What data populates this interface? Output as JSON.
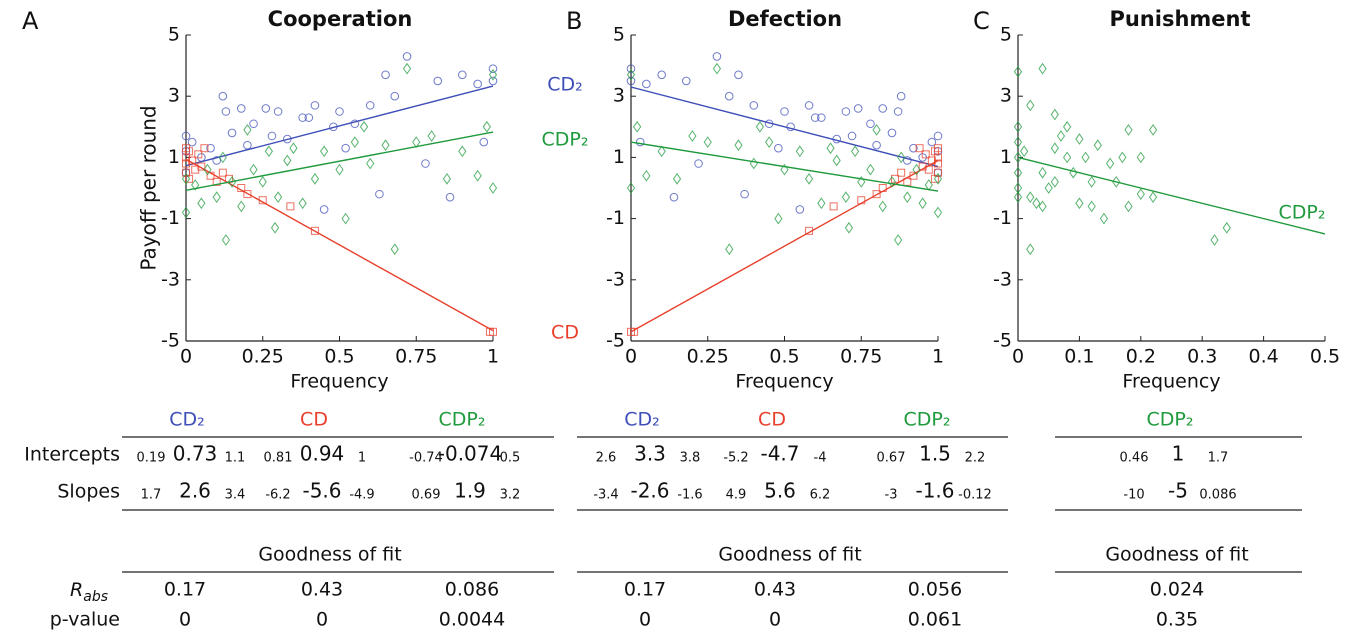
{
  "chart_data": [
    {
      "type": "scatter",
      "label": "A",
      "title": "Cooperation",
      "xlabel": "Frequency",
      "ylabel": "Payoff per round",
      "xlim": [
        0,
        1
      ],
      "ylim": [
        -5,
        5
      ],
      "xticks": [
        0,
        0.25,
        0.5,
        0.75,
        1
      ],
      "yticks": [
        -5,
        -3,
        -1,
        1,
        3,
        5
      ],
      "series": [
        {
          "name": "CD₂",
          "color": "#3f4fb8",
          "marker": "circle",
          "x": [
            0,
            0,
            0,
            0.02,
            0.05,
            0.08,
            0.1,
            0.12,
            0.13,
            0.15,
            0.18,
            0.2,
            0.22,
            0.26,
            0.28,
            0.3,
            0.33,
            0.38,
            0.4,
            0.42,
            0.45,
            0.48,
            0.5,
            0.52,
            0.55,
            0.6,
            0.63,
            0.65,
            0.68,
            0.72,
            0.78,
            0.82,
            0.86,
            0.9,
            0.95,
            0.97,
            1,
            1
          ],
          "y": [
            1.7,
            1.2,
            0.5,
            1.5,
            1.0,
            1.3,
            0.9,
            3.0,
            2.5,
            1.8,
            2.6,
            1.4,
            2.1,
            2.6,
            1.7,
            2.5,
            1.6,
            2.3,
            2.3,
            2.7,
            -0.7,
            2.0,
            2.5,
            1.3,
            2.1,
            2.7,
            -0.2,
            3.7,
            3.0,
            4.3,
            0.8,
            3.5,
            -0.3,
            3.7,
            3.4,
            1.5,
            3.9,
            3.5
          ]
        },
        {
          "name": "CD",
          "color": "#e8402c",
          "marker": "square",
          "x": [
            0,
            0,
            0,
            0,
            0.01,
            0.01,
            0.02,
            0.03,
            0.04,
            0.05,
            0.06,
            0.08,
            0.1,
            0.12,
            0.14,
            0.18,
            0.2,
            0.25,
            0.34,
            0.42,
            0.99,
            1
          ],
          "y": [
            0.5,
            0.8,
            1.0,
            1.3,
            0.3,
            1.2,
            0.9,
            0.6,
            1.1,
            0.7,
            1.3,
            0.4,
            0.2,
            0.5,
            0.3,
            0,
            -0.2,
            -0.4,
            -0.6,
            -1.4,
            -4.7,
            -4.7
          ]
        },
        {
          "name": "CDP₂",
          "color": "#1f9a3c",
          "marker": "diamond",
          "x": [
            0,
            0,
            0.03,
            0.05,
            0.07,
            0.1,
            0.12,
            0.13,
            0.15,
            0.18,
            0.2,
            0.22,
            0.25,
            0.27,
            0.29,
            0.3,
            0.33,
            0.35,
            0.38,
            0.42,
            0.45,
            0.5,
            0.52,
            0.55,
            0.58,
            0.6,
            0.65,
            0.68,
            0.72,
            0.75,
            0.8,
            0.85,
            0.9,
            0.95,
            0.98,
            1,
            1
          ],
          "y": [
            -0.8,
            0.3,
            0.1,
            -0.5,
            0.6,
            -0.3,
            1.0,
            -1.7,
            0.2,
            -0.6,
            1.9,
            0.6,
            0.2,
            1.2,
            -1.3,
            -0.3,
            0.9,
            1.3,
            -0.5,
            0.3,
            1.2,
            0.6,
            -1.0,
            1.5,
            2.0,
            0.8,
            1.4,
            -2.0,
            3.9,
            1.5,
            1.7,
            0.3,
            1.2,
            0.4,
            2.0,
            0,
            3.7
          ]
        }
      ]
    },
    {
      "type": "scatter",
      "label": "B",
      "title": "Defection",
      "xlabel": "Frequency",
      "xlim": [
        0,
        1
      ],
      "ylim": [
        -5,
        5
      ],
      "xticks": [
        0,
        0.25,
        0.5,
        0.75,
        1
      ],
      "yticks": [
        -5,
        -3,
        -1,
        1,
        3,
        5
      ],
      "series": [
        {
          "name": "CD₂",
          "color": "#3f4fb8",
          "marker": "circle",
          "x": [
            1,
            1,
            1,
            0.98,
            0.95,
            0.92,
            0.9,
            0.88,
            0.87,
            0.85,
            0.82,
            0.8,
            0.78,
            0.74,
            0.72,
            0.7,
            0.67,
            0.62,
            0.6,
            0.58,
            0.55,
            0.52,
            0.5,
            0.48,
            0.45,
            0.4,
            0.37,
            0.35,
            0.32,
            0.28,
            0.22,
            0.18,
            0.14,
            0.1,
            0.05,
            0.03,
            0,
            0
          ],
          "y": [
            1.7,
            1.2,
            0.5,
            1.5,
            1.0,
            1.3,
            0.9,
            3.0,
            2.5,
            1.8,
            2.6,
            1.4,
            2.1,
            2.6,
            1.7,
            2.5,
            1.6,
            2.3,
            2.3,
            2.7,
            -0.7,
            2.0,
            2.5,
            1.3,
            2.1,
            2.7,
            -0.2,
            3.7,
            3.0,
            4.3,
            0.8,
            3.5,
            -0.3,
            3.7,
            3.4,
            1.5,
            3.9,
            3.5
          ]
        },
        {
          "name": "CD",
          "color": "#e8402c",
          "marker": "square",
          "x": [
            1,
            1,
            1,
            1,
            0.99,
            0.99,
            0.98,
            0.97,
            0.96,
            0.95,
            0.94,
            0.92,
            0.9,
            0.88,
            0.86,
            0.82,
            0.8,
            0.75,
            0.66,
            0.58,
            0.01,
            0
          ],
          "y": [
            0.5,
            0.8,
            1.0,
            1.3,
            0.3,
            1.2,
            0.9,
            0.6,
            1.1,
            0.7,
            1.3,
            0.4,
            0.2,
            0.5,
            0.3,
            0,
            -0.2,
            -0.4,
            -0.6,
            -1.4,
            -4.7,
            -4.7
          ]
        },
        {
          "name": "CDP₂",
          "color": "#1f9a3c",
          "marker": "diamond",
          "x": [
            1,
            1,
            0.97,
            0.95,
            0.93,
            0.9,
            0.88,
            0.87,
            0.85,
            0.82,
            0.8,
            0.78,
            0.75,
            0.73,
            0.71,
            0.7,
            0.67,
            0.65,
            0.62,
            0.58,
            0.55,
            0.5,
            0.48,
            0.45,
            0.42,
            0.4,
            0.35,
            0.32,
            0.28,
            0.25,
            0.2,
            0.15,
            0.1,
            0.05,
            0.02,
            0,
            0
          ],
          "y": [
            -0.8,
            0.3,
            0.1,
            -0.5,
            0.6,
            -0.3,
            1.0,
            -1.7,
            0.2,
            -0.6,
            1.9,
            0.6,
            0.2,
            1.2,
            -1.3,
            -0.3,
            0.9,
            1.3,
            -0.5,
            0.3,
            1.2,
            0.6,
            -1.0,
            1.5,
            2.0,
            0.8,
            1.4,
            -2.0,
            3.9,
            1.5,
            1.7,
            0.3,
            1.2,
            0.4,
            2.0,
            0,
            3.7
          ]
        }
      ]
    },
    {
      "type": "scatter",
      "label": "C",
      "title": "Punishment",
      "xlabel": "Frequency",
      "xlim": [
        0,
        0.5
      ],
      "ylim": [
        -5,
        5
      ],
      "xticks": [
        0,
        0.1,
        0.2,
        0.3,
        0.4,
        0.5
      ],
      "yticks": [
        -5,
        -3,
        -1,
        1,
        3,
        5
      ],
      "series": [
        {
          "name": "CDP₂",
          "color": "#1f9a3c",
          "marker": "diamond",
          "x": [
            0,
            0,
            0,
            0,
            0,
            0,
            0,
            0.01,
            0.02,
            0.02,
            0.03,
            0.04,
            0.04,
            0.04,
            0.05,
            0.06,
            0.06,
            0.06,
            0.07,
            0.08,
            0.08,
            0.09,
            0.1,
            0.1,
            0.11,
            0.12,
            0.12,
            0.13,
            0.14,
            0.15,
            0.16,
            0.17,
            0.18,
            0.18,
            0.2,
            0.2,
            0.22,
            0.22,
            0.32,
            0.34,
            0.02
          ],
          "y": [
            3.8,
            2.0,
            1.5,
            1.0,
            0.5,
            0,
            -0.3,
            1.2,
            2.7,
            -0.3,
            -0.5,
            3.9,
            0.5,
            -0.6,
            0,
            2.4,
            1.3,
            0.2,
            1.7,
            2.0,
            1.0,
            0.5,
            1.6,
            -0.5,
            1.0,
            0.2,
            -0.6,
            1.4,
            -1.0,
            0.8,
            0.2,
            1.0,
            1.9,
            -0.6,
            1.0,
            -0.2,
            1.9,
            -0.3,
            -1.7,
            -1.3,
            -2.0
          ]
        }
      ]
    }
  ],
  "row_labels": [
    "Intercepts",
    "Slopes"
  ],
  "fit_title": "Goodness of fit",
  "fit_labels": [
    {
      "label": "R",
      "sub": "abs"
    },
    {
      "label": "p-value"
    }
  ],
  "tables": [
    {
      "columns": [
        "CD₂",
        "CD",
        "CDP₂"
      ],
      "rows": [
        [
          [
            0.19,
            0.73,
            1.1
          ],
          [
            0.81,
            0.94,
            1
          ],
          [
            -0.74,
            -0.074,
            0.5
          ]
        ],
        [
          [
            1.7,
            2.6,
            3.4
          ],
          [
            -6.2,
            -5.6,
            -4.9
          ],
          [
            0.69,
            1.9,
            3.2
          ]
        ]
      ],
      "fit": [
        [
          0.17,
          0.43,
          0.086
        ],
        [
          0,
          0,
          0.0044
        ]
      ]
    },
    {
      "columns": [
        "CD₂",
        "CD",
        "CDP₂"
      ],
      "rows": [
        [
          [
            2.6,
            3.3,
            3.8
          ],
          [
            -5.2,
            -4.7,
            -4
          ],
          [
            0.67,
            1.5,
            2.2
          ]
        ],
        [
          [
            -3.4,
            -2.6,
            -1.6
          ],
          [
            4.9,
            5.6,
            6.2
          ],
          [
            -3,
            -1.6,
            -0.12
          ]
        ]
      ],
      "fit": [
        [
          0.17,
          0.43,
          0.056
        ],
        [
          0,
          0,
          0.061
        ]
      ]
    },
    {
      "columns": [
        "CDP₂"
      ],
      "rows": [
        [
          [
            0.46,
            1,
            1.7
          ]
        ],
        [
          [
            -10,
            -5,
            0.086
          ]
        ]
      ],
      "fit": [
        [
          0.024
        ],
        [
          0.35
        ]
      ]
    }
  ]
}
